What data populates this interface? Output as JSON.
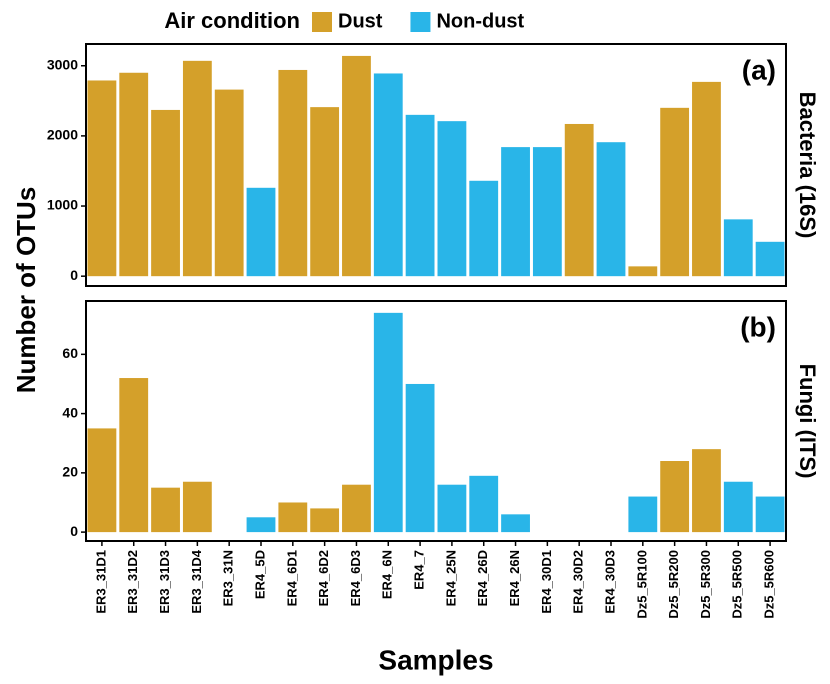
{
  "legend_title": "Air condition",
  "ylabel": "Number of OTUs",
  "xlabel": "Samples",
  "chart_data": [
    {
      "type": "bar",
      "label": "(a)",
      "strip": "Bacteria (16S)",
      "ylim": [
        -140,
        3310
      ],
      "yticks": [
        0,
        1000,
        2000,
        3000
      ],
      "series": [
        {
          "name": "Dust",
          "color": "#d4a02a",
          "values": [
            2790,
            2900,
            2370,
            3070,
            2660,
            null,
            2940,
            2410,
            3140,
            null,
            null,
            null,
            null,
            null,
            null,
            2170,
            null,
            140,
            2400,
            2770,
            null,
            null
          ]
        },
        {
          "name": "Non-dust",
          "color": "#29b5e8",
          "values": [
            null,
            null,
            null,
            null,
            null,
            1260,
            null,
            null,
            null,
            2890,
            2300,
            2210,
            1360,
            1840,
            1840,
            null,
            1910,
            null,
            null,
            null,
            810,
            490
          ]
        }
      ]
    },
    {
      "type": "bar",
      "label": "(b)",
      "strip": "Fungi (ITS)",
      "categories": [
        "ER3_31D1",
        "ER3_31D2",
        "ER3_31D3",
        "ER3_31D4",
        "ER3_31N",
        "ER4_5D",
        "ER4_6D1",
        "ER4_6D2",
        "ER4_6D3",
        "ER4_6N",
        "ER4_7",
        "ER4_25N",
        "ER4_26D",
        "ER4_26N",
        "ER4_30D1",
        "ER4_30D2",
        "ER4_30D3",
        "Dz5_5R100",
        "Dz5_5R200",
        "Dz5_5R300",
        "Dz5_5R500",
        "Dz5_5R600"
      ],
      "ylim": [
        -3,
        78
      ],
      "yticks": [
        0,
        20,
        40,
        60
      ],
      "series": [
        {
          "name": "Dust",
          "color": "#d4a02a",
          "values": [
            35,
            52,
            15,
            17,
            null,
            null,
            10,
            8,
            16,
            null,
            null,
            null,
            null,
            null,
            null,
            null,
            null,
            null,
            24,
            28,
            null,
            null
          ]
        },
        {
          "name": "Non-dust",
          "color": "#29b5e8",
          "values": [
            null,
            null,
            null,
            null,
            null,
            5,
            null,
            null,
            null,
            74,
            50,
            16,
            19,
            6,
            null,
            null,
            null,
            12,
            null,
            null,
            17,
            12
          ]
        }
      ]
    }
  ]
}
